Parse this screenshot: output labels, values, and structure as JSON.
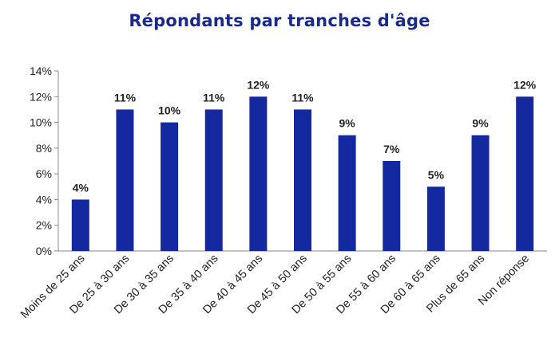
{
  "chart_data": {
    "type": "bar",
    "title": "Répondants par tranches d'âge",
    "xlabel": "",
    "ylabel": "",
    "categories": [
      "Moins de 25 ans",
      "De 25 à 30 ans",
      "De 30 à 35 ans",
      "De 35 à 40 ans",
      "De 40 à 45 ans",
      "De 45 à 50 ans",
      "De 50 à 55 ans",
      "De 55 à 60 ans",
      "De 60 à 65 ans",
      "Plus de 65 ans",
      "Non réponse"
    ],
    "values": [
      4,
      11,
      10,
      11,
      12,
      11,
      9,
      7,
      5,
      9,
      12
    ],
    "data_labels": [
      "4%",
      "11%",
      "10%",
      "11%",
      "12%",
      "11%",
      "9%",
      "7%",
      "5%",
      "9%",
      "12%"
    ],
    "ylim": [
      0,
      14
    ],
    "y_ticks": [
      "0%",
      "2%",
      "4%",
      "6%",
      "8%",
      "10%",
      "12%",
      "14%"
    ],
    "y_tick_values": [
      0,
      2,
      4,
      6,
      8,
      10,
      12,
      14
    ],
    "grid": false,
    "colors": {
      "bar": "#1428a0",
      "title": "#1a2a8c"
    }
  }
}
